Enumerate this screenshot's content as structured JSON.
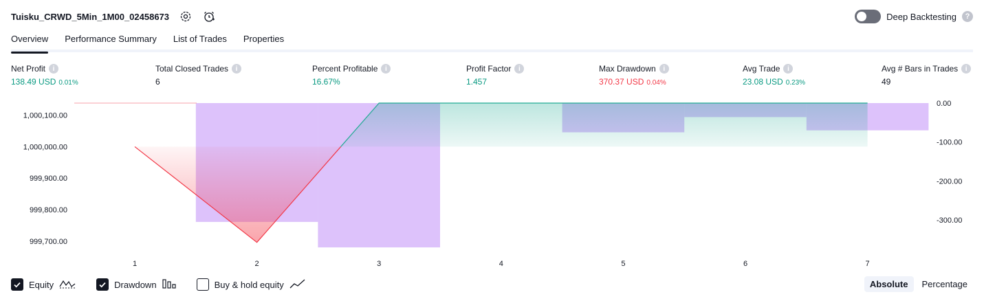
{
  "header": {
    "title": "Tuisku_CRWD_5Min_1M00_02458673",
    "settings_icon": "gear-icon",
    "alert_icon": "alarm-clock-icon"
  },
  "deep_backtesting": {
    "label": "Deep Backtesting",
    "enabled": false,
    "help_icon": "?"
  },
  "tabs": [
    {
      "label": "Overview",
      "active": true
    },
    {
      "label": "Performance Summary",
      "active": false
    },
    {
      "label": "List of Trades",
      "active": false
    },
    {
      "label": "Properties",
      "active": false
    }
  ],
  "metrics": {
    "net_profit": {
      "label": "Net Profit",
      "value": "138.49 USD",
      "sub": "0.01%"
    },
    "total_closed_trades": {
      "label": "Total Closed Trades",
      "value": "6"
    },
    "percent_profitable": {
      "label": "Percent Profitable",
      "value": "16.67%"
    },
    "profit_factor": {
      "label": "Profit Factor",
      "value": "1.457"
    },
    "max_drawdown": {
      "label": "Max Drawdown",
      "value": "370.37 USD",
      "sub": "0.04%"
    },
    "avg_trade": {
      "label": "Avg Trade",
      "value": "23.08 USD",
      "sub": "0.23%"
    },
    "avg_bars": {
      "label": "Avg # Bars in Trades",
      "value": "49"
    },
    "info_glyph": "i"
  },
  "colors": {
    "positive": "#089981",
    "negative": "#f23645",
    "drawdown_bar": "#c89cf9",
    "equity_down": "#f23645",
    "equity_up": "#22ab94"
  },
  "chart_data": {
    "type": "line",
    "categories": [
      "1",
      "2",
      "3",
      "4",
      "5",
      "6",
      "7"
    ],
    "equity": {
      "x": [
        1,
        2,
        3,
        7
      ],
      "values": [
        1000000.0,
        999696.0,
        1000138.49,
        1000138.49
      ]
    },
    "buy_hold_baseline": 1000138.49,
    "drawdown": {
      "bars": [
        {
          "from": 1.5,
          "to": 2.5,
          "value": -305
        },
        {
          "from": 2.5,
          "to": 3.5,
          "value": -370.37
        },
        {
          "from": 4.5,
          "to": 5.5,
          "value": -75
        },
        {
          "from": 5.5,
          "to": 6.5,
          "value": -36
        },
        {
          "from": 6.5,
          "to": 7.5,
          "value": -70
        }
      ]
    },
    "left_axis": {
      "ticks": [
        "1,000,100.00",
        "1,000,000.00",
        "999,900.00",
        "999,800.00",
        "999,700.00"
      ],
      "tick_values": [
        1000100,
        1000000,
        999900,
        999800,
        999700
      ],
      "ylim": [
        999680,
        1000138.49
      ]
    },
    "right_axis": {
      "ticks": [
        "0.00",
        "-100.00",
        "-200.00",
        "-300.00"
      ],
      "tick_values": [
        0,
        -100,
        -200,
        -300
      ],
      "ylim": [
        -370.37,
        0
      ]
    }
  },
  "footer": {
    "equity": {
      "label": "Equity",
      "checked": true,
      "icon": "equity-line-icon"
    },
    "drawdown": {
      "label": "Drawdown",
      "checked": true,
      "icon": "drawdown-bars-icon"
    },
    "buy_hold": {
      "label": "Buy & hold equity",
      "checked": false,
      "icon": "buy-hold-line-icon"
    },
    "absolute": "Absolute",
    "percentage": "Percentage"
  }
}
